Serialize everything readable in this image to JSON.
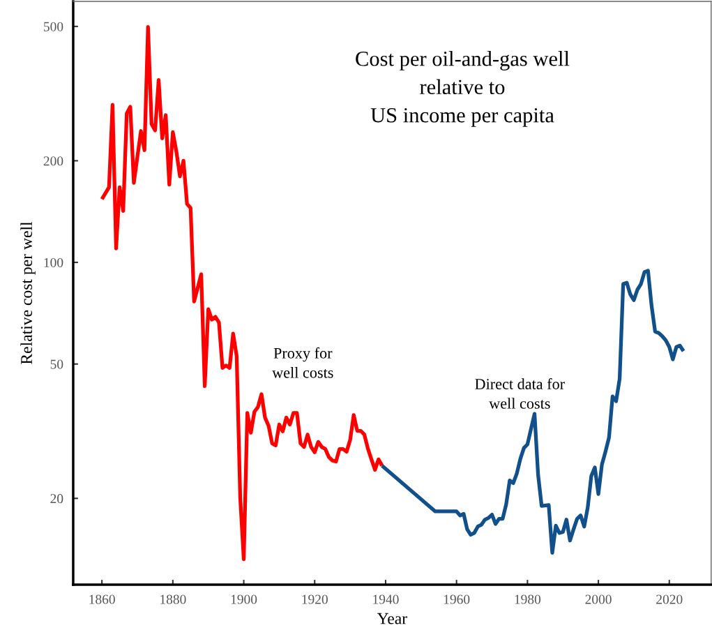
{
  "chart_data": {
    "type": "line",
    "title": "Cost per oil-and-gas well\nrelative to\nUS income per capita",
    "xlabel": "Year",
    "ylabel": "Relative cost per well",
    "annotations": [
      "Proxy for\nwell costs",
      "Direct data for\nwell costs"
    ],
    "log": "y",
    "xlim": [
      1851.9,
      2031.8
    ],
    "ylim": [
      11.1,
      593
    ],
    "xticks": [
      1860,
      1880,
      1900,
      1920,
      1940,
      1960,
      1980,
      2000,
      2020
    ],
    "yticks": [
      20,
      50,
      100,
      200,
      500
    ],
    "marker": "none",
    "line_style": "solid",
    "series": [
      {
        "color": "#ff0000",
        "x": [
          1860,
          1862,
          1863,
          1864,
          1865,
          1866,
          1867,
          1868,
          1869,
          1871,
          1872,
          1873,
          1874,
          1875,
          1876,
          1877,
          1878,
          1879,
          1880,
          1881,
          1882,
          1883,
          1884,
          1885,
          1886,
          1888,
          1889,
          1890,
          1891,
          1892,
          1893,
          1894,
          1895,
          1896,
          1897,
          1898,
          1899,
          1900,
          1901,
          1902,
          1903,
          1904,
          1905,
          1906,
          1907,
          1908,
          1909,
          1910,
          1911,
          1912,
          1913,
          1914,
          1915,
          1916,
          1917,
          1918,
          1919,
          1920,
          1921,
          1922,
          1923,
          1924,
          1925,
          1926,
          1927,
          1928,
          1929,
          1930,
          1931,
          1932,
          1933,
          1934,
          1935,
          1936,
          1937,
          1938,
          1939
        ],
        "values": [
          154,
          167,
          293,
          110,
          167,
          142,
          276,
          289,
          172,
          245,
          215,
          498,
          257,
          246,
          347,
          233,
          273,
          170,
          243,
          213,
          180,
          200,
          149,
          145,
          76.6,
          92.2,
          43,
          72.7,
          67.7,
          69,
          66.4,
          48.7,
          49.5,
          48.7,
          61.5,
          52.8,
          20.1,
          13.2,
          35.8,
          31.3,
          36.1,
          37.3,
          40.7,
          34.7,
          32.8,
          29.1,
          28.7,
          33.1,
          31.6,
          34.7,
          33.1,
          35.8,
          35.8,
          29.1,
          28.4,
          30.9,
          28.4,
          27.4,
          29.4,
          28.4,
          28.0,
          26.5,
          25.9,
          25.7,
          28.0,
          28.0,
          27.5,
          29.8,
          35.3,
          31.7,
          31.7,
          30.9,
          28.1,
          26.1,
          24.3,
          26.1,
          25.0
        ]
      },
      {
        "color": "#12508c",
        "x": [
          1939,
          1954,
          1960,
          1961,
          1962,
          1963,
          1964,
          1965,
          1966,
          1967,
          1968,
          1969,
          1970,
          1971,
          1972,
          1973,
          1974,
          1975,
          1976,
          1977,
          1978,
          1979,
          1980,
          1981,
          1982,
          1983,
          1984,
          1986,
          1987,
          1988,
          1989,
          1990,
          1991,
          1992,
          1993,
          1994,
          1995,
          1996,
          1997,
          1998,
          1999,
          2000,
          2001,
          2002,
          2003,
          2004,
          2005,
          2006,
          2007,
          2008,
          2009,
          2010,
          2011,
          2012,
          2013,
          2014,
          2015,
          2016,
          2017,
          2018,
          2019,
          2020,
          2021,
          2022,
          2023,
          2024
        ],
        "values": [
          25.0,
          18.3,
          18.3,
          17.8,
          18.0,
          16.2,
          15.6,
          15.8,
          16.5,
          16.7,
          17.3,
          17.5,
          17.9,
          16.8,
          17.4,
          17.4,
          19.2,
          22.6,
          22.2,
          23.7,
          26.2,
          28.2,
          28.9,
          32.1,
          35.6,
          23.5,
          19.0,
          19.1,
          13.8,
          16.6,
          15.8,
          15.9,
          17.3,
          15.0,
          16.2,
          17.4,
          17.8,
          16.5,
          18.8,
          23.3,
          24.7,
          20.6,
          25.2,
          27.5,
          30.3,
          40.1,
          38.8,
          45.2,
          86.3,
          87.1,
          80.4,
          77.3,
          83.0,
          86.3,
          93.6,
          94.5,
          74.4,
          62.4,
          61.8,
          60.5,
          58.8,
          56.2,
          51.6,
          56.2,
          56.7,
          54.6
        ]
      }
    ]
  }
}
